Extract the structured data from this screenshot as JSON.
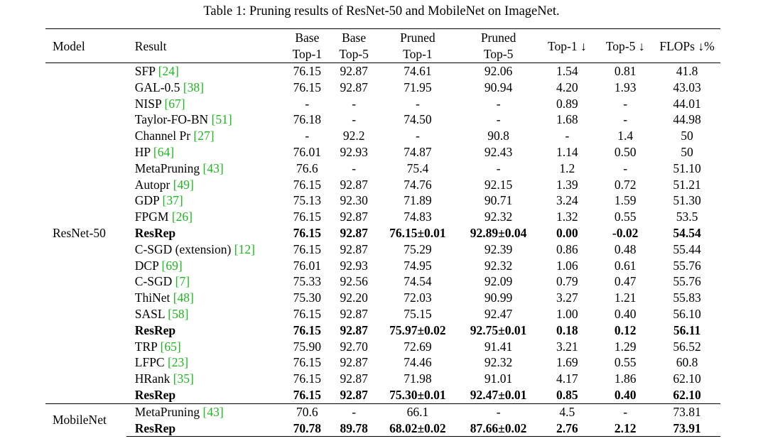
{
  "caption": "Table 1: Pruning results of ResNet-50 and MobileNet on ImageNet.",
  "header": {
    "model": "Model",
    "result": "Result",
    "base_top1": [
      "Base",
      "Top-1"
    ],
    "base_top5": [
      "Base",
      "Top-5"
    ],
    "pruned_top1": [
      "Pruned",
      "Top-1"
    ],
    "pruned_top5": [
      "Pruned",
      "Top-5"
    ],
    "top1_drop": "Top-1 ↓",
    "top5_drop": "Top-5 ↓",
    "flops": "FLOPs ↓%"
  },
  "groups": [
    {
      "model": "ResNet-50",
      "rows": [
        {
          "name": "SFP",
          "ref": "[24]",
          "bold": false,
          "base_top1": "76.15",
          "base_top5": "92.87",
          "pruned_top1": "74.61",
          "pruned_top5": "92.06",
          "top1_drop": "1.54",
          "top5_drop": "0.81",
          "flops": "41.8"
        },
        {
          "name": "GAL-0.5",
          "ref": "[38]",
          "bold": false,
          "base_top1": "76.15",
          "base_top5": "92.87",
          "pruned_top1": "71.95",
          "pruned_top5": "90.94",
          "top1_drop": "4.20",
          "top5_drop": "1.93",
          "flops": "43.03"
        },
        {
          "name": "NISP",
          "ref": "[67]",
          "bold": false,
          "base_top1": "-",
          "base_top5": "-",
          "pruned_top1": "-",
          "pruned_top5": "-",
          "top1_drop": "0.89",
          "top5_drop": "-",
          "flops": "44.01"
        },
        {
          "name": "Taylor-FO-BN",
          "ref": "[51]",
          "bold": false,
          "base_top1": "76.18",
          "base_top5": "-",
          "pruned_top1": "74.50",
          "pruned_top5": "-",
          "top1_drop": "1.68",
          "top5_drop": "-",
          "flops": "44.98"
        },
        {
          "name": "Channel Pr",
          "ref": "[27]",
          "bold": false,
          "base_top1": "-",
          "base_top5": "92.2",
          "pruned_top1": "-",
          "pruned_top5": "90.8",
          "top1_drop": "-",
          "top5_drop": "1.4",
          "flops": "50"
        },
        {
          "name": "HP",
          "ref": "[64]",
          "bold": false,
          "base_top1": "76.01",
          "base_top5": "92.93",
          "pruned_top1": "74.87",
          "pruned_top5": "92.43",
          "top1_drop": "1.14",
          "top5_drop": "0.50",
          "flops": "50"
        },
        {
          "name": "MetaPruning",
          "ref": "[43]",
          "bold": false,
          "base_top1": "76.6",
          "base_top5": "-",
          "pruned_top1": "75.4",
          "pruned_top5": "-",
          "top1_drop": "1.2",
          "top5_drop": "-",
          "flops": "51.10"
        },
        {
          "name": "Autopr",
          "ref": "[49]",
          "bold": false,
          "base_top1": "76.15",
          "base_top5": "92.87",
          "pruned_top1": "74.76",
          "pruned_top5": "92.15",
          "top1_drop": "1.39",
          "top5_drop": "0.72",
          "flops": "51.21"
        },
        {
          "name": "GDP",
          "ref": "[37]",
          "bold": false,
          "base_top1": "75.13",
          "base_top5": "92.30",
          "pruned_top1": "71.89",
          "pruned_top5": "90.71",
          "top1_drop": "3.24",
          "top5_drop": "1.59",
          "flops": "51.30"
        },
        {
          "name": "FPGM",
          "ref": "[26]",
          "bold": false,
          "base_top1": "76.15",
          "base_top5": "92.87",
          "pruned_top1": "74.83",
          "pruned_top5": "92.32",
          "top1_drop": "1.32",
          "top5_drop": "0.55",
          "flops": "53.5"
        },
        {
          "name": "ResRep",
          "ref": "",
          "bold": true,
          "base_top1": "76.15",
          "base_top5": "92.87",
          "pruned_top1": "76.15±0.01",
          "pruned_top5": "92.89±0.04",
          "top1_drop": "0.00",
          "top5_drop": "-0.02",
          "flops": "54.54"
        },
        {
          "name": "C-SGD (extension)",
          "ref": "[12]",
          "bold": false,
          "base_top1": "76.15",
          "base_top5": "92.87",
          "pruned_top1": "75.29",
          "pruned_top5": "92.39",
          "top1_drop": "0.86",
          "top5_drop": "0.48",
          "flops": "55.44"
        },
        {
          "name": "DCP",
          "ref": "[69]",
          "bold": false,
          "base_top1": "76.01",
          "base_top5": "92.93",
          "pruned_top1": "74.95",
          "pruned_top5": "92.32",
          "top1_drop": "1.06",
          "top5_drop": "0.61",
          "flops": "55.76"
        },
        {
          "name": "C-SGD",
          "ref": "[7]",
          "bold": false,
          "base_top1": "75.33",
          "base_top5": "92.56",
          "pruned_top1": "74.54",
          "pruned_top5": "92.09",
          "top1_drop": "0.79",
          "top5_drop": "0.47",
          "flops": "55.76"
        },
        {
          "name": "ThiNet",
          "ref": "[48]",
          "bold": false,
          "base_top1": "75.30",
          "base_top5": "92.20",
          "pruned_top1": "72.03",
          "pruned_top5": "90.99",
          "top1_drop": "3.27",
          "top5_drop": "1.21",
          "flops": "55.83"
        },
        {
          "name": "SASL",
          "ref": "[58]",
          "bold": false,
          "base_top1": "76.15",
          "base_top5": "92.87",
          "pruned_top1": "75.15",
          "pruned_top5": "92.47",
          "top1_drop": "1.00",
          "top5_drop": "0.40",
          "flops": "56.10"
        },
        {
          "name": "ResRep",
          "ref": "",
          "bold": true,
          "base_top1": "76.15",
          "base_top5": "92.87",
          "pruned_top1": "75.97±0.02",
          "pruned_top5": "92.75±0.01",
          "top1_drop": "0.18",
          "top5_drop": "0.12",
          "flops": "56.11"
        },
        {
          "name": "TRP",
          "ref": "[65]",
          "bold": false,
          "base_top1": "75.90",
          "base_top5": "92.70",
          "pruned_top1": "72.69",
          "pruned_top5": "91.41",
          "top1_drop": "3.21",
          "top5_drop": "1.29",
          "flops": "56.52"
        },
        {
          "name": "LFPC",
          "ref": "[23]",
          "bold": false,
          "base_top1": "76.15",
          "base_top5": "92.87",
          "pruned_top1": "74.46",
          "pruned_top5": "92.32",
          "top1_drop": "1.69",
          "top5_drop": "0.55",
          "flops": "60.8"
        },
        {
          "name": "HRank",
          "ref": "[35]",
          "bold": false,
          "base_top1": "76.15",
          "base_top5": "92.87",
          "pruned_top1": "71.98",
          "pruned_top5": "91.01",
          "top1_drop": "4.17",
          "top5_drop": "1.86",
          "flops": "62.10"
        },
        {
          "name": "ResRep",
          "ref": "",
          "bold": true,
          "base_top1": "76.15",
          "base_top5": "92.87",
          "pruned_top1": "75.30±0.01",
          "pruned_top5": "92.47±0.01",
          "top1_drop": "0.85",
          "top5_drop": "0.40",
          "flops": "62.10"
        }
      ]
    },
    {
      "model": "MobileNet",
      "rows": [
        {
          "name": "MetaPruning",
          "ref": "[43]",
          "bold": false,
          "base_top1": "70.6",
          "base_top5": "-",
          "pruned_top1": "66.1",
          "pruned_top5": "-",
          "top1_drop": "4.5",
          "top5_drop": "-",
          "flops": "73.81"
        },
        {
          "name": "ResRep",
          "ref": "",
          "bold": true,
          "base_top1": "70.78",
          "base_top5": "89.78",
          "pruned_top1": "68.02±0.02",
          "pruned_top5": "87.66±0.02",
          "top1_drop": "2.76",
          "top5_drop": "2.12",
          "flops": "73.91"
        }
      ]
    }
  ]
}
